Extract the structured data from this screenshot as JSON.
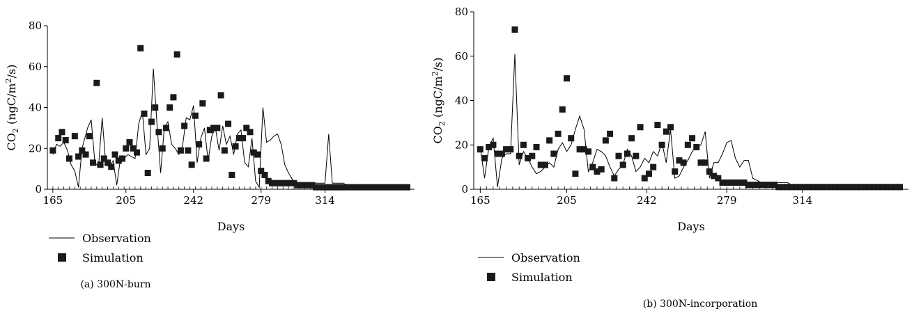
{
  "chart_data": [
    {
      "type": "line",
      "caption": "(a) 300N-burn",
      "xlabel": "Days",
      "ylabel_main": "CO",
      "ylabel_sub": "2",
      "ylabel_unit_a": "(ngC/m",
      "ylabel_unit_sup": "2",
      "ylabel_unit_b": "/s)",
      "xlim": [
        162,
        363
      ],
      "ylim": [
        0,
        80
      ],
      "xticks": [
        165,
        205,
        242,
        279,
        314
      ],
      "yticks": [
        0,
        20,
        40,
        60,
        80
      ],
      "series": [
        {
          "name": "Observation",
          "style": "line",
          "x": [
            165,
            167,
            169,
            171,
            173,
            175,
            177,
            179,
            181,
            184,
            186,
            188,
            190,
            192,
            194,
            196,
            198,
            200,
            202,
            204,
            206,
            208,
            210,
            212,
            214,
            216,
            218,
            220,
            222,
            224,
            226,
            228,
            230,
            232,
            234,
            236,
            238,
            240,
            242,
            244,
            246,
            248,
            250,
            252,
            254,
            256,
            258,
            260,
            262,
            264,
            266,
            268,
            270,
            272,
            274,
            276,
            278,
            280,
            282,
            284,
            286,
            288,
            290,
            292,
            294,
            296,
            298,
            300,
            302,
            304,
            306,
            308,
            310,
            312,
            314,
            316,
            318,
            320,
            322,
            324,
            326,
            328,
            330,
            332,
            334,
            336,
            338,
            340,
            342,
            344,
            346,
            348,
            350,
            352,
            354,
            356,
            358
          ],
          "y": [
            17,
            22,
            21,
            23,
            19,
            12,
            9,
            1,
            20,
            30,
            34,
            13,
            11,
            35,
            12,
            11,
            14,
            2,
            15,
            15,
            17,
            16,
            15,
            32,
            38,
            17,
            20,
            59,
            32,
            8,
            30,
            33,
            22,
            20,
            17,
            21,
            35,
            34,
            41,
            13,
            25,
            30,
            14,
            26,
            30,
            19,
            31,
            22,
            26,
            17,
            27,
            29,
            13,
            11,
            25,
            4,
            1,
            40,
            23,
            24,
            26,
            27,
            22,
            12,
            8,
            5,
            3,
            3,
            3,
            3,
            3,
            3,
            3,
            3,
            3,
            27,
            3,
            3,
            3,
            3,
            2,
            2,
            2,
            2,
            1,
            1,
            1,
            1,
            1,
            1,
            1,
            1,
            1,
            1,
            1,
            1,
            1
          ]
        },
        {
          "name": "Simulation",
          "style": "marker",
          "x": [
            165,
            168,
            170,
            172,
            174,
            177,
            179,
            181,
            183,
            185,
            187,
            189,
            191,
            193,
            195,
            197,
            199,
            201,
            203,
            205,
            207,
            209,
            211,
            213,
            215,
            217,
            219,
            221,
            223,
            225,
            227,
            229,
            231,
            233,
            235,
            237,
            239,
            241,
            243,
            245,
            247,
            249,
            251,
            253,
            255,
            257,
            259,
            261,
            263,
            265,
            267,
            269,
            271,
            273,
            275,
            277,
            279,
            281,
            283,
            285,
            287,
            289,
            291,
            293,
            295,
            297,
            299,
            301,
            303,
            305,
            307,
            309,
            311,
            313,
            315,
            317,
            319,
            321,
            323,
            325,
            327,
            329,
            331,
            333,
            335,
            337,
            339,
            341,
            343,
            345,
            347,
            349,
            351,
            353,
            355,
            357,
            359
          ],
          "y": [
            19,
            25,
            28,
            24,
            15,
            26,
            16,
            19,
            17,
            26,
            13,
            52,
            12,
            15,
            13,
            11,
            17,
            14,
            15,
            20,
            23,
            20,
            18,
            69,
            37,
            8,
            33,
            40,
            28,
            20,
            30,
            40,
            45,
            66,
            19,
            31,
            19,
            12,
            36,
            22,
            42,
            15,
            29,
            30,
            30,
            46,
            19,
            32,
            7,
            21,
            25,
            25,
            30,
            28,
            18,
            17,
            9,
            7,
            4,
            3,
            3,
            3,
            3,
            3,
            3,
            3,
            2,
            2,
            2,
            2,
            2,
            1,
            1,
            1,
            1,
            1,
            1,
            1,
            1,
            1,
            1,
            1,
            1,
            1,
            1,
            1,
            1,
            1,
            1,
            1,
            1,
            1,
            1,
            1,
            1,
            1,
            1
          ]
        }
      ]
    },
    {
      "type": "line",
      "caption": "(b) 300N-incorporation",
      "xlabel": "Days",
      "ylabel_main": "CO",
      "ylabel_sub": "2",
      "ylabel_unit_a": "(ngC/m",
      "ylabel_unit_sup": "2",
      "ylabel_unit_b": "/s)",
      "xlim": [
        162,
        363
      ],
      "ylim": [
        0,
        80
      ],
      "xticks": [
        165,
        205,
        242,
        279,
        314
      ],
      "yticks": [
        0,
        20,
        40,
        60,
        80
      ],
      "series": [
        {
          "name": "Observation",
          "style": "line",
          "x": [
            165,
            167,
            169,
            171,
            173,
            175,
            177,
            179,
            181,
            183,
            185,
            187,
            189,
            191,
            193,
            195,
            197,
            199,
            201,
            203,
            205,
            207,
            209,
            211,
            213,
            215,
            217,
            219,
            221,
            223,
            225,
            227,
            229,
            231,
            233,
            235,
            237,
            239,
            241,
            243,
            245,
            247,
            249,
            251,
            253,
            255,
            257,
            259,
            261,
            263,
            265,
            267,
            269,
            271,
            273,
            275,
            277,
            279,
            281,
            283,
            285,
            287,
            289,
            291,
            293,
            295,
            297,
            299,
            301,
            303,
            305,
            307,
            309,
            311,
            313,
            315,
            317,
            319,
            321,
            323,
            325,
            327,
            329,
            331,
            333,
            335,
            337,
            339,
            341,
            343,
            345,
            347,
            349,
            351,
            353,
            355,
            357,
            359
          ],
          "y": [
            19,
            5,
            19,
            23,
            1,
            14,
            16,
            16,
            61,
            11,
            17,
            14,
            10,
            7,
            8,
            10,
            12,
            10,
            18,
            21,
            17,
            20,
            27,
            33,
            27,
            8,
            12,
            18,
            17,
            15,
            10,
            6,
            9,
            11,
            18,
            15,
            8,
            10,
            14,
            12,
            17,
            15,
            21,
            12,
            27,
            5,
            6,
            10,
            13,
            17,
            19,
            20,
            26,
            5,
            12,
            12,
            16,
            21,
            22,
            14,
            10,
            13,
            13,
            5,
            4,
            3,
            3,
            3,
            3,
            3,
            3,
            3,
            2,
            2,
            2,
            2,
            2,
            2,
            2,
            1,
            1,
            1,
            1,
            1,
            1,
            1,
            1,
            1,
            1,
            1,
            1,
            1,
            1,
            1,
            1,
            1,
            1,
            1
          ]
        },
        {
          "name": "Simulation",
          "style": "marker",
          "x": [
            165,
            167,
            169,
            171,
            173,
            175,
            177,
            179,
            181,
            183,
            185,
            187,
            189,
            191,
            193,
            195,
            197,
            199,
            201,
            203,
            205,
            207,
            209,
            211,
            213,
            215,
            217,
            219,
            221,
            223,
            225,
            227,
            229,
            231,
            233,
            235,
            237,
            239,
            241,
            243,
            245,
            247,
            249,
            251,
            253,
            255,
            257,
            259,
            261,
            263,
            265,
            267,
            269,
            271,
            273,
            275,
            277,
            279,
            281,
            283,
            285,
            287,
            289,
            291,
            293,
            295,
            297,
            299,
            301,
            303,
            305,
            307,
            309,
            311,
            313,
            315,
            317,
            319,
            321,
            323,
            325,
            327,
            329,
            331,
            333,
            335,
            337,
            339,
            341,
            343,
            345,
            347,
            349,
            351,
            353,
            355,
            357,
            359
          ],
          "y": [
            18,
            14,
            19,
            20,
            16,
            16,
            18,
            18,
            72,
            15,
            20,
            14,
            15,
            19,
            11,
            11,
            22,
            16,
            25,
            36,
            50,
            23,
            7,
            18,
            18,
            17,
            10,
            8,
            9,
            22,
            25,
            5,
            15,
            11,
            16,
            23,
            15,
            28,
            5,
            7,
            10,
            29,
            20,
            26,
            28,
            8,
            13,
            12,
            20,
            23,
            19,
            12,
            12,
            8,
            6,
            5,
            3,
            3,
            3,
            3,
            3,
            3,
            2,
            2,
            2,
            2,
            2,
            2,
            2,
            1,
            1,
            1,
            1,
            1,
            1,
            1,
            1,
            1,
            1,
            1,
            1,
            1,
            1,
            1,
            1,
            1,
            1,
            1,
            1,
            1,
            1,
            1,
            1,
            1,
            1,
            1,
            1,
            1
          ]
        }
      ]
    }
  ]
}
